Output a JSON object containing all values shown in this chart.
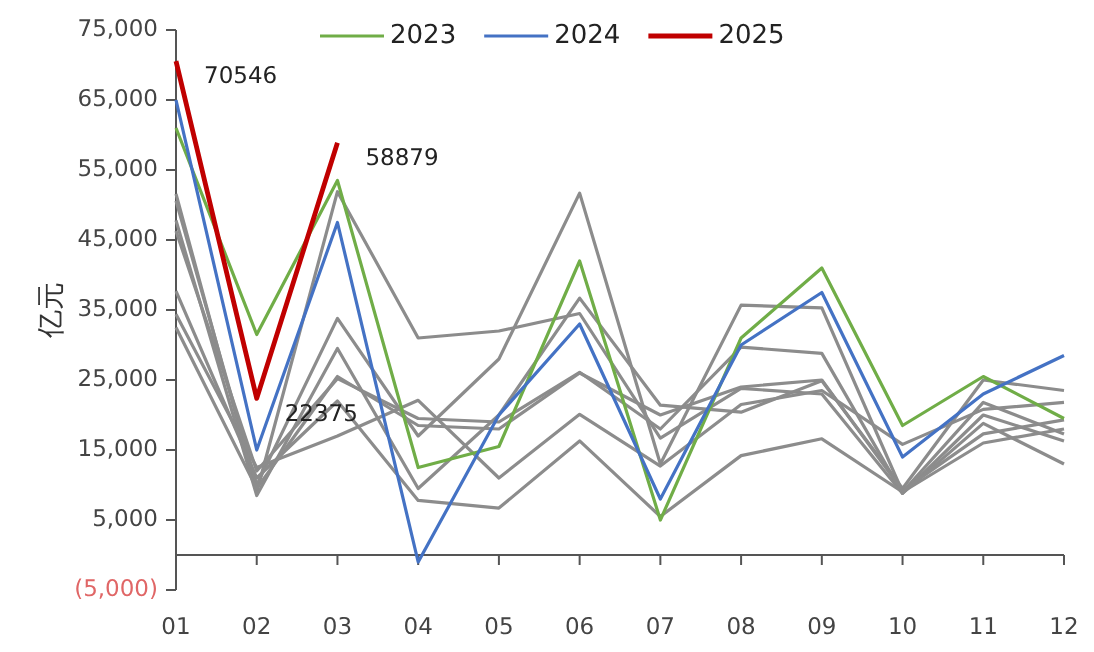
{
  "chart_data": {
    "type": "line",
    "ylabel": "亿元",
    "categories": [
      "01",
      "02",
      "03",
      "04",
      "05",
      "06",
      "07",
      "08",
      "09",
      "10",
      "11",
      "12"
    ],
    "ylim": [
      -5000,
      75000
    ],
    "yticks": [
      {
        "value": -5000,
        "label": "(5,000)"
      },
      {
        "value": 5000,
        "label": "5,000"
      },
      {
        "value": 15000,
        "label": "15,000"
      },
      {
        "value": 25000,
        "label": "25,000"
      },
      {
        "value": 35000,
        "label": "35,000"
      },
      {
        "value": 45000,
        "label": "45,000"
      },
      {
        "value": 55000,
        "label": "55,000"
      },
      {
        "value": 65000,
        "label": "65,000"
      },
      {
        "value": 75000,
        "label": "75,000"
      }
    ],
    "grid": false,
    "legend": "top",
    "marker": "none",
    "line_style": "solid",
    "series": [
      {
        "color": "#8c8c8c",
        "values": [
          51600,
          9000,
          51900,
          31000,
          32000,
          34500,
          16700,
          23800,
          23000,
          8800,
          20000,
          16300
        ]
      },
      {
        "color": "#8c8c8c",
        "values": [
          50600,
          10000,
          33800,
          17000,
          28000,
          51700,
          13000,
          35700,
          35300,
          9000,
          21800,
          17300
        ]
      },
      {
        "color": "#8c8c8c",
        "values": [
          47800,
          8500,
          29500,
          9500,
          20000,
          36700,
          21400,
          20400,
          24900,
          9500,
          25000,
          23500
        ]
      },
      {
        "color": "#8c8c8c",
        "values": [
          46300,
          12000,
          25200,
          19500,
          19000,
          26100,
          18000,
          29700,
          28800,
          8800,
          18800,
          13000
        ]
      },
      {
        "color": "#8c8c8c",
        "values": [
          37700,
          11000,
          22000,
          7800,
          6700,
          16300,
          5500,
          14200,
          16600,
          9000,
          16000,
          18000
        ]
      },
      {
        "color": "#8c8c8c",
        "values": [
          34400,
          12500,
          17000,
          22100,
          11000,
          20100,
          12700,
          21500,
          23500,
          15800,
          20800,
          21800
        ]
      },
      {
        "color": "#8c8c8c",
        "values": [
          32500,
          9500,
          25500,
          18500,
          18000,
          26000,
          20000,
          24000,
          25000,
          9200,
          17300,
          19300
        ]
      },
      {
        "name": "2023",
        "color": "#70ad47",
        "values": [
          61000,
          31500,
          53500,
          12500,
          15500,
          42000,
          5000,
          31000,
          41000,
          18500,
          25500,
          19500
        ]
      },
      {
        "name": "2024",
        "color": "#4472c4",
        "values": [
          65000,
          15000,
          47500,
          -1000,
          20000,
          33000,
          8000,
          30000,
          37500,
          14000,
          23000,
          28500
        ]
      },
      {
        "name": "2025",
        "color": "#c00000",
        "values": [
          70546,
          22375,
          58879,
          null,
          null,
          null,
          null,
          null,
          null,
          null,
          null,
          null
        ],
        "value_labels": [
          "70546",
          "22375",
          "58879",
          null,
          null,
          null,
          null,
          null,
          null,
          null,
          null,
          null
        ]
      }
    ]
  }
}
